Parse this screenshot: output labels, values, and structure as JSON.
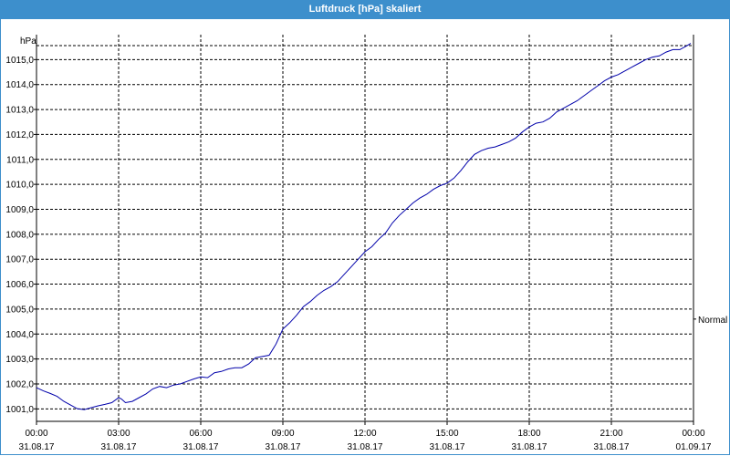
{
  "window": {
    "title": "Luftdruck [hPa] skaliert"
  },
  "chart_data": {
    "type": "line",
    "title": "Luftdruck [hPa] skaliert",
    "ylabel": "hPa",
    "xlabel": "",
    "ylim": [
      1000.5,
      1016.0
    ],
    "yticks": [
      1001.0,
      1002.0,
      1003.0,
      1004.0,
      1005.0,
      1006.0,
      1007.0,
      1008.0,
      1009.0,
      1010.0,
      1011.0,
      1012.0,
      1013.0,
      1014.0,
      1015.0
    ],
    "ytick_labels": [
      "1001,0",
      "1002,0",
      "1003,0",
      "1004,0",
      "1005,0",
      "1006,0",
      "1007,0",
      "1008,0",
      "1009,0",
      "1010,0",
      "1011,0",
      "1012,0",
      "1013,0",
      "1014,0",
      "1015,0"
    ],
    "xlim": [
      0,
      24
    ],
    "xticks": [
      0,
      3,
      6,
      9,
      12,
      15,
      18,
      21,
      24
    ],
    "xtick_labels": [
      {
        "time": "00:00",
        "date": "31.08.17"
      },
      {
        "time": "03:00",
        "date": "31.08.17"
      },
      {
        "time": "06:00",
        "date": "31.08.17"
      },
      {
        "time": "09:00",
        "date": "31.08.17"
      },
      {
        "time": "12:00",
        "date": "31.08.17"
      },
      {
        "time": "15:00",
        "date": "31.08.17"
      },
      {
        "time": "18:00",
        "date": "31.08.17"
      },
      {
        "time": "21:00",
        "date": "31.08.17"
      },
      {
        "time": "00:00",
        "date": "01.09.17"
      }
    ],
    "grid": true,
    "annotation": "Normal",
    "annotation_value": 1004.6,
    "series": [
      {
        "color": "#0000aa",
        "x": [
          0.0,
          0.25,
          0.5,
          0.75,
          1.0,
          1.25,
          1.5,
          1.75,
          2.0,
          2.25,
          2.5,
          2.75,
          3.0,
          3.1,
          3.25,
          3.5,
          3.75,
          4.0,
          4.25,
          4.5,
          4.75,
          5.0,
          5.25,
          5.5,
          5.75,
          6.0,
          6.25,
          6.5,
          6.75,
          7.0,
          7.25,
          7.5,
          7.75,
          8.0,
          8.25,
          8.5,
          8.75,
          9.0,
          9.25,
          9.5,
          9.75,
          10.0,
          10.25,
          10.5,
          10.75,
          11.0,
          11.25,
          11.5,
          11.75,
          12.0,
          12.25,
          12.5,
          12.75,
          13.0,
          13.25,
          13.5,
          13.75,
          14.0,
          14.25,
          14.5,
          14.75,
          15.0,
          15.25,
          15.5,
          15.75,
          16.0,
          16.25,
          16.5,
          16.75,
          17.0,
          17.25,
          17.5,
          17.75,
          18.0,
          18.25,
          18.5,
          18.75,
          19.0,
          19.25,
          19.5,
          19.75,
          20.0,
          20.25,
          20.5,
          20.75,
          21.0,
          21.25,
          21.5,
          21.75,
          22.0,
          22.25,
          22.5,
          22.75,
          23.0,
          23.25,
          23.5,
          23.75,
          23.9
        ],
        "y": [
          1001.85,
          1001.72,
          1001.62,
          1001.5,
          1001.3,
          1001.15,
          1001.0,
          1000.97,
          1001.05,
          1001.12,
          1001.18,
          1001.25,
          1001.45,
          1001.4,
          1001.25,
          1001.3,
          1001.45,
          1001.6,
          1001.8,
          1001.9,
          1001.85,
          1001.95,
          1002.0,
          1002.1,
          1002.2,
          1002.28,
          1002.25,
          1002.45,
          1002.5,
          1002.6,
          1002.65,
          1002.65,
          1002.8,
          1003.05,
          1003.1,
          1003.15,
          1003.6,
          1004.2,
          1004.45,
          1004.75,
          1005.1,
          1005.3,
          1005.55,
          1005.75,
          1005.9,
          1006.1,
          1006.4,
          1006.7,
          1007.0,
          1007.3,
          1007.5,
          1007.8,
          1008.05,
          1008.45,
          1008.75,
          1009.0,
          1009.25,
          1009.45,
          1009.6,
          1009.8,
          1009.95,
          1010.05,
          1010.25,
          1010.55,
          1010.9,
          1011.2,
          1011.35,
          1011.45,
          1011.5,
          1011.6,
          1011.7,
          1011.85,
          1012.1,
          1012.3,
          1012.45,
          1012.5,
          1012.65,
          1012.9,
          1013.05,
          1013.2,
          1013.35,
          1013.55,
          1013.75,
          1013.95,
          1014.15,
          1014.3,
          1014.4,
          1014.55,
          1014.7,
          1014.85,
          1015.0,
          1015.1,
          1015.15,
          1015.3,
          1015.4,
          1015.4,
          1015.55,
          1015.65
        ]
      }
    ]
  }
}
